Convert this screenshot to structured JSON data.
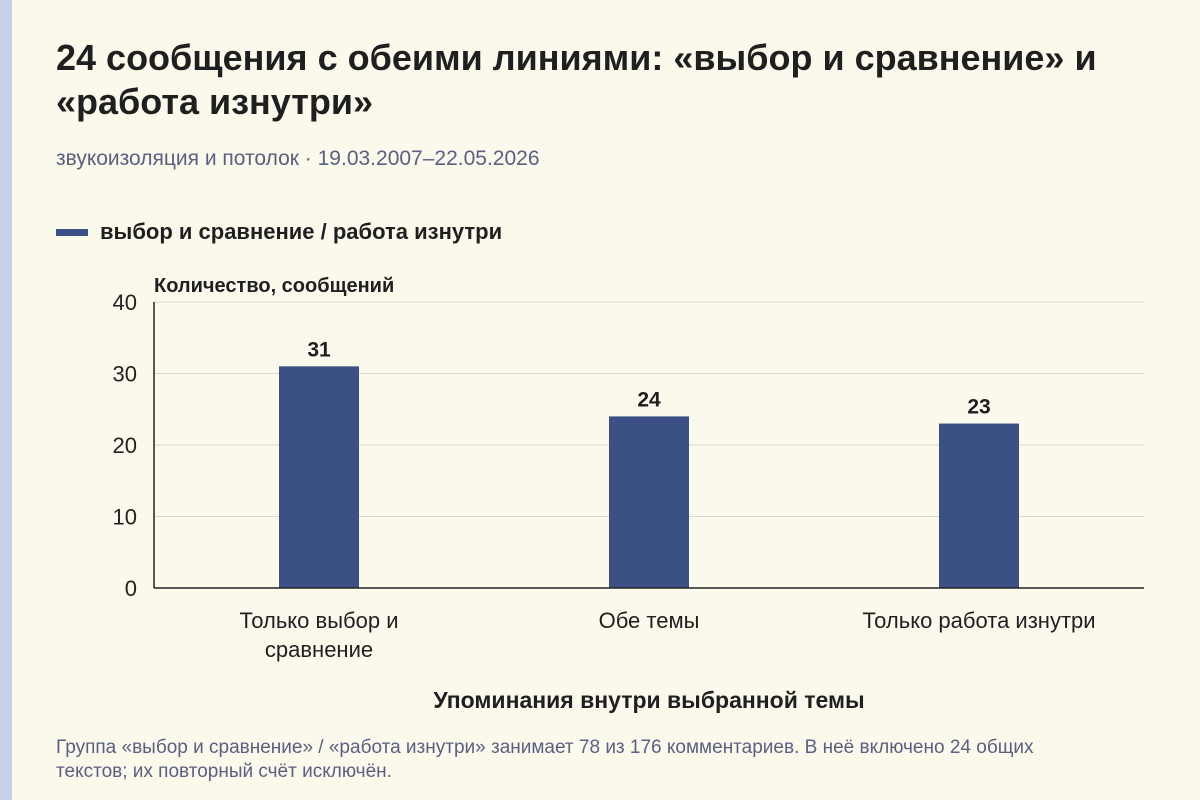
{
  "header": {
    "title": "24 сообщения с обеими линиями: «выбор и сравнение» и «работа изнутри»",
    "subtitle": "звукоизоляция и потолок · 19.03.2007–22.05.2026"
  },
  "colors": {
    "bar": "#3b5186",
    "background": "#fbf8ec",
    "grid": "#d8d8d8",
    "axis": "#222222"
  },
  "chart_data": {
    "type": "bar",
    "categories": [
      "Только выбор и сравнение",
      "Обе темы",
      "Только работа изнутри"
    ],
    "category_lines": [
      [
        "Только выбор и",
        "сравнение"
      ],
      [
        "Обе темы"
      ],
      [
        "Только работа изнутри"
      ]
    ],
    "series": [
      {
        "name": "выбор и сравнение / работа изнутри",
        "values": [
          31,
          24,
          23
        ]
      }
    ],
    "data_labels": [
      "31",
      "24",
      "23"
    ],
    "xlabel": "Упоминания внутри выбранной темы",
    "ylabel": "Количество, сообщений",
    "ylim": [
      0,
      40
    ],
    "yticks": [
      0,
      10,
      20,
      30,
      40
    ],
    "grid": true,
    "legend": "top-left"
  },
  "footnote": "Группа «выбор и сравнение» / «работа изнутри» занимает 78 из 176 комментариев. В неё включено 24 общих текстов; их повторный счёт исключён."
}
